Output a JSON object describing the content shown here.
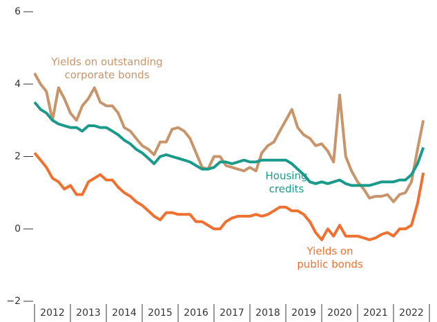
{
  "chart_data": {
    "type": "line",
    "categories": [
      "2012",
      "2013",
      "2014",
      "2015",
      "2016",
      "2017",
      "2018",
      "2019",
      "2020",
      "2021",
      "2022"
    ],
    "xlim": [
      2012,
      2023
    ],
    "xticks": [
      2012,
      2013,
      2014,
      2015,
      2016,
      2017,
      2018,
      2019,
      2020,
      2021,
      2022,
      2023
    ],
    "ylim": [
      -2,
      6
    ],
    "yticks": [
      {
        "value": -2,
        "label": "−2"
      },
      0,
      2,
      4,
      6
    ],
    "x": [
      2012,
      2012.17,
      2012.33,
      2012.5,
      2012.67,
      2012.83,
      2013,
      2013.17,
      2013.33,
      2013.5,
      2013.67,
      2013.83,
      2014,
      2014.17,
      2014.33,
      2014.5,
      2014.67,
      2014.83,
      2015,
      2015.17,
      2015.33,
      2015.5,
      2015.67,
      2015.83,
      2016,
      2016.17,
      2016.33,
      2016.5,
      2016.67,
      2016.83,
      2017,
      2017.17,
      2017.33,
      2017.5,
      2017.67,
      2017.83,
      2018,
      2018.17,
      2018.33,
      2018.5,
      2018.67,
      2018.83,
      2019,
      2019.17,
      2019.33,
      2019.5,
      2019.67,
      2019.83,
      2020,
      2020.17,
      2020.33,
      2020.5,
      2020.67,
      2020.83,
      2021,
      2021.17,
      2021.33,
      2021.5,
      2021.67,
      2021.83,
      2022,
      2022.17,
      2022.33,
      2022.5,
      2022.67,
      2022.83
    ],
    "series": [
      {
        "label_lines": [
          "Yields on outstanding",
          "corporate bonds"
        ],
        "color": "#c8956a",
        "values": [
          4.3,
          4.0,
          3.8,
          3.0,
          3.9,
          3.6,
          3.2,
          3.0,
          3.4,
          3.6,
          3.9,
          3.5,
          3.4,
          3.4,
          3.2,
          2.8,
          2.7,
          2.5,
          2.3,
          2.2,
          2.05,
          2.4,
          2.4,
          2.75,
          2.8,
          2.7,
          2.5,
          2.1,
          1.7,
          1.65,
          2.0,
          2.0,
          1.75,
          1.7,
          1.65,
          1.6,
          1.7,
          1.6,
          2.1,
          2.3,
          2.4,
          2.7,
          3.0,
          3.3,
          2.8,
          2.6,
          2.5,
          2.3,
          2.35,
          2.15,
          1.85,
          3.7,
          2.0,
          1.6,
          1.3,
          1.1,
          0.85,
          0.9,
          0.9,
          0.95,
          0.75,
          0.95,
          1.0,
          1.3,
          2.2,
          3.0
        ]
      },
      {
        "label_lines": [
          "Housing",
          "credits"
        ],
        "color": "#1a9a8a",
        "values": [
          3.5,
          3.3,
          3.2,
          3.0,
          2.9,
          2.85,
          2.8,
          2.8,
          2.7,
          2.85,
          2.85,
          2.8,
          2.8,
          2.7,
          2.6,
          2.45,
          2.35,
          2.2,
          2.1,
          1.95,
          1.8,
          2.0,
          2.05,
          2.0,
          1.95,
          1.9,
          1.85,
          1.75,
          1.65,
          1.65,
          1.7,
          1.85,
          1.85,
          1.8,
          1.85,
          1.9,
          1.85,
          1.85,
          1.9,
          1.9,
          1.9,
          1.9,
          1.9,
          1.8,
          1.65,
          1.5,
          1.3,
          1.25,
          1.3,
          1.25,
          1.3,
          1.35,
          1.25,
          1.2,
          1.2,
          1.2,
          1.2,
          1.25,
          1.3,
          1.3,
          1.3,
          1.35,
          1.35,
          1.5,
          1.8,
          2.25
        ]
      },
      {
        "label_lines": [
          "Yields on",
          "public bonds"
        ],
        "color": "#f07030",
        "values": [
          2.1,
          1.9,
          1.7,
          1.4,
          1.3,
          1.1,
          1.2,
          0.95,
          0.95,
          1.3,
          1.4,
          1.5,
          1.35,
          1.35,
          1.15,
          1.0,
          0.9,
          0.75,
          0.65,
          0.5,
          0.35,
          0.25,
          0.45,
          0.45,
          0.4,
          0.4,
          0.4,
          0.2,
          0.2,
          0.1,
          0.0,
          0.0,
          0.2,
          0.3,
          0.35,
          0.35,
          0.35,
          0.4,
          0.35,
          0.4,
          0.5,
          0.6,
          0.6,
          0.5,
          0.5,
          0.4,
          0.2,
          -0.1,
          -0.3,
          0.0,
          -0.2,
          0.1,
          -0.2,
          -0.2,
          -0.2,
          -0.25,
          -0.3,
          -0.25,
          -0.15,
          -0.1,
          -0.2,
          0.0,
          0.0,
          0.1,
          0.7,
          1.55
        ]
      }
    ]
  }
}
